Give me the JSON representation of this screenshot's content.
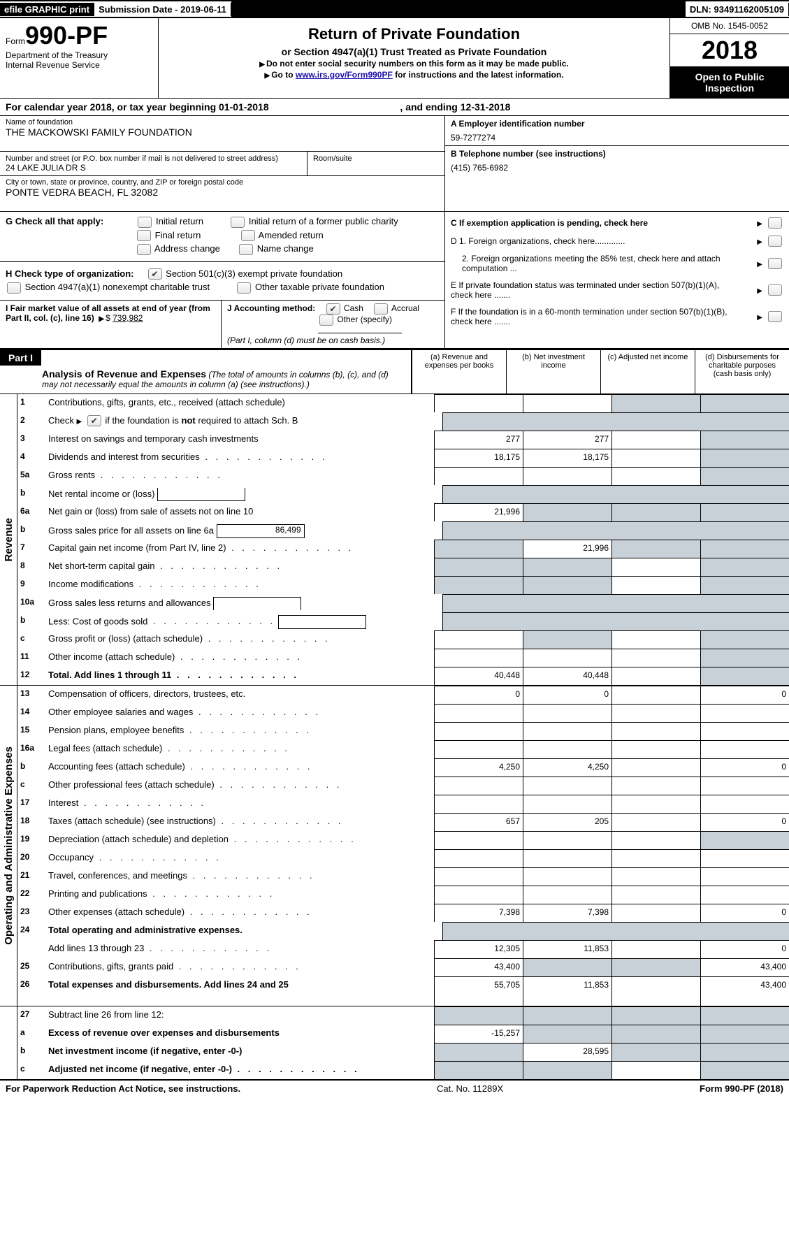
{
  "topbar": {
    "efile": "efile GRAPHIC print",
    "subdate_label": "Submission Date - ",
    "subdate": "2019-06-11",
    "dln_label": "DLN: ",
    "dln": "93491162005109"
  },
  "header": {
    "form_label": "Form",
    "form_num": "990-PF",
    "dept": "Department of the Treasury\nInternal Revenue Service",
    "title": "Return of Private Foundation",
    "sub": "or Section 4947(a)(1) Trust Treated as Private Foundation",
    "warn": "Do not enter social security numbers on this form as it may be made public.",
    "goto_pre": "Go to ",
    "goto_link": "www.irs.gov/Form990PF",
    "goto_post": " for instructions and the latest information.",
    "omb": "OMB No. 1545-0052",
    "year": "2018",
    "open": "Open to Public Inspection"
  },
  "calyear": {
    "pre": "For calendar year 2018, or tax year beginning ",
    "begin": "01-01-2018",
    "mid": ", and ending ",
    "end": "12-31-2018"
  },
  "info": {
    "name_label": "Name of foundation",
    "name": "THE MACKOWSKI FAMILY FOUNDATION",
    "addr_label": "Number and street (or P.O. box number if mail is not delivered to street address)",
    "addr": "24 LAKE JULIA DR S",
    "room_label": "Room/suite",
    "city_label": "City or town, state or province, country, and ZIP or foreign postal code",
    "city": "PONTE VEDRA BEACH, FL  32082",
    "ein_label": "A Employer identification number",
    "ein": "59-7277274",
    "tel_label": "B Telephone number (see instructions)",
    "tel": "(415) 765-6982",
    "c_label": "C  If exemption application is pending, check here",
    "d1": "D 1. Foreign organizations, check here.............",
    "d2": "2. Foreign organizations meeting the 85% test, check here and attach computation ...",
    "e": "E  If private foundation status was terminated under section 507(b)(1)(A), check here .......",
    "f": "F  If the foundation is in a 60-month termination under section 507(b)(1)(B), check here ......."
  },
  "g": {
    "label": "G Check all that apply:",
    "opts": [
      "Initial return",
      "Initial return of a former public charity",
      "Final return",
      "Amended return",
      "Address change",
      "Name change"
    ]
  },
  "h": {
    "label": "H Check type of organization:",
    "o1": "Section 501(c)(3) exempt private foundation",
    "o2": "Section 4947(a)(1) nonexempt charitable trust",
    "o3": "Other taxable private foundation"
  },
  "i": {
    "label": "I Fair market value of all assets at end of year (from Part II, col. (c), line 16)",
    "val": "739,982"
  },
  "j": {
    "label": "J Accounting method:",
    "o1": "Cash",
    "o2": "Accrual",
    "o3": "Other (specify)",
    "note": "(Part I, column (d) must be on cash basis.)"
  },
  "part1": {
    "label": "Part I",
    "title": "Analysis of Revenue and Expenses",
    "desc": "(The total of amounts in columns (b), (c), and (d) may not necessarily equal the amounts in column (a) (see instructions).)",
    "cols": {
      "a": "(a)     Revenue and expenses per books",
      "b": "(b)     Net investment income",
      "c": "(c)     Adjusted net income",
      "d": "(d)     Disbursements for charitable purposes (cash basis only)"
    }
  },
  "verts": {
    "rev": "Revenue",
    "exp": "Operating and Administrative Expenses"
  },
  "rows": {
    "r1": {
      "n": "1",
      "d": "Contributions, gifts, grants, etc., received (attach schedule)",
      "a": "",
      "b": "",
      "c": "shade",
      "dd": "shade"
    },
    "r2": {
      "n": "2",
      "d": "Check ▶        if the foundation is not required to attach Sch. B"
    },
    "r3": {
      "n": "3",
      "d": "Interest on savings and temporary cash investments",
      "a": "277",
      "b": "277",
      "c": "",
      "dd": "shade"
    },
    "r4": {
      "n": "4",
      "d": "Dividends and interest from securities",
      "a": "18,175",
      "b": "18,175",
      "c": "",
      "dd": "shade"
    },
    "r5a": {
      "n": "5a",
      "d": "Gross rents",
      "a": "",
      "b": "",
      "c": "",
      "dd": "shade"
    },
    "r5b": {
      "n": "b",
      "d": "Net rental income or (loss)"
    },
    "r6a": {
      "n": "6a",
      "d": "Net gain or (loss) from sale of assets not on line 10",
      "a": "21,996",
      "b": "shade",
      "c": "shade",
      "dd": "shade"
    },
    "r6b": {
      "n": "b",
      "d": "Gross sales price for all assets on line 6a",
      "box": "86,499"
    },
    "r7": {
      "n": "7",
      "d": "Capital gain net income (from Part IV, line 2)",
      "a": "shade",
      "b": "21,996",
      "c": "shade",
      "dd": "shade"
    },
    "r8": {
      "n": "8",
      "d": "Net short-term capital gain",
      "a": "shade",
      "b": "shade",
      "c": "",
      "dd": "shade"
    },
    "r9": {
      "n": "9",
      "d": "Income modifications",
      "a": "shade",
      "b": "shade",
      "c": "",
      "dd": "shade"
    },
    "r10a": {
      "n": "10a",
      "d": "Gross sales less returns and allowances"
    },
    "r10b": {
      "n": "b",
      "d": "Less: Cost of goods sold"
    },
    "r10c": {
      "n": "c",
      "d": "Gross profit or (loss) (attach schedule)",
      "a": "",
      "b": "shade",
      "c": "",
      "dd": "shade"
    },
    "r11": {
      "n": "11",
      "d": "Other income (attach schedule)",
      "a": "",
      "b": "",
      "c": "",
      "dd": "shade"
    },
    "r12": {
      "n": "12",
      "d": "Total. Add lines 1 through 11",
      "a": "40,448",
      "b": "40,448",
      "c": "",
      "dd": "shade",
      "bold": true
    },
    "r13": {
      "n": "13",
      "d": "Compensation of officers, directors, trustees, etc.",
      "a": "0",
      "b": "0",
      "c": "",
      "dd": "0"
    },
    "r14": {
      "n": "14",
      "d": "Other employee salaries and wages",
      "a": "",
      "b": "",
      "c": "",
      "dd": ""
    },
    "r15": {
      "n": "15",
      "d": "Pension plans, employee benefits",
      "a": "",
      "b": "",
      "c": "",
      "dd": ""
    },
    "r16a": {
      "n": "16a",
      "d": "Legal fees (attach schedule)",
      "a": "",
      "b": "",
      "c": "",
      "dd": ""
    },
    "r16b": {
      "n": "b",
      "d": "Accounting fees (attach schedule)",
      "a": "4,250",
      "b": "4,250",
      "c": "",
      "dd": "0"
    },
    "r16c": {
      "n": "c",
      "d": "Other professional fees (attach schedule)",
      "a": "",
      "b": "",
      "c": "",
      "dd": ""
    },
    "r17": {
      "n": "17",
      "d": "Interest",
      "a": "",
      "b": "",
      "c": "",
      "dd": ""
    },
    "r18": {
      "n": "18",
      "d": "Taxes (attach schedule) (see instructions)",
      "a": "657",
      "b": "205",
      "c": "",
      "dd": "0"
    },
    "r19": {
      "n": "19",
      "d": "Depreciation (attach schedule) and depletion",
      "a": "",
      "b": "",
      "c": "",
      "dd": "shade"
    },
    "r20": {
      "n": "20",
      "d": "Occupancy",
      "a": "",
      "b": "",
      "c": "",
      "dd": ""
    },
    "r21": {
      "n": "21",
      "d": "Travel, conferences, and meetings",
      "a": "",
      "b": "",
      "c": "",
      "dd": ""
    },
    "r22": {
      "n": "22",
      "d": "Printing and publications",
      "a": "",
      "b": "",
      "c": "",
      "dd": ""
    },
    "r23": {
      "n": "23",
      "d": "Other expenses (attach schedule)",
      "a": "7,398",
      "b": "7,398",
      "c": "",
      "dd": "0"
    },
    "r24": {
      "n": "24",
      "d": "Total operating and administrative expenses.",
      "bold": true
    },
    "r24b": {
      "n": "",
      "d": "Add lines 13 through 23",
      "a": "12,305",
      "b": "11,853",
      "c": "",
      "dd": "0"
    },
    "r25": {
      "n": "25",
      "d": "Contributions, gifts, grants paid",
      "a": "43,400",
      "b": "shade",
      "c": "shade",
      "dd": "43,400"
    },
    "r26": {
      "n": "26",
      "d": "Total expenses and disbursements. Add lines 24 and 25",
      "a": "55,705",
      "b": "11,853",
      "c": "",
      "dd": "43,400",
      "bold": true,
      "tall": true
    },
    "r27": {
      "n": "27",
      "d": "Subtract line 26 from line 12:",
      "a": "shade",
      "b": "shade",
      "c": "shade",
      "dd": "shade"
    },
    "r27a": {
      "n": "a",
      "d": "Excess of revenue over expenses and disbursements",
      "a": "-15,257",
      "b": "shade",
      "c": "shade",
      "dd": "shade",
      "bold": true
    },
    "r27b": {
      "n": "b",
      "d": "Net investment income (if negative, enter -0-)",
      "a": "shade",
      "b": "28,595",
      "c": "shade",
      "dd": "shade",
      "bold": true
    },
    "r27c": {
      "n": "c",
      "d": "Adjusted net income (if negative, enter -0-)",
      "a": "shade",
      "b": "shade",
      "c": "",
      "dd": "shade",
      "bold": true
    }
  },
  "footer": {
    "left": "For Paperwork Reduction Act Notice, see instructions.",
    "mid": "Cat. No. 11289X",
    "right": "Form 990-PF (2018)"
  }
}
